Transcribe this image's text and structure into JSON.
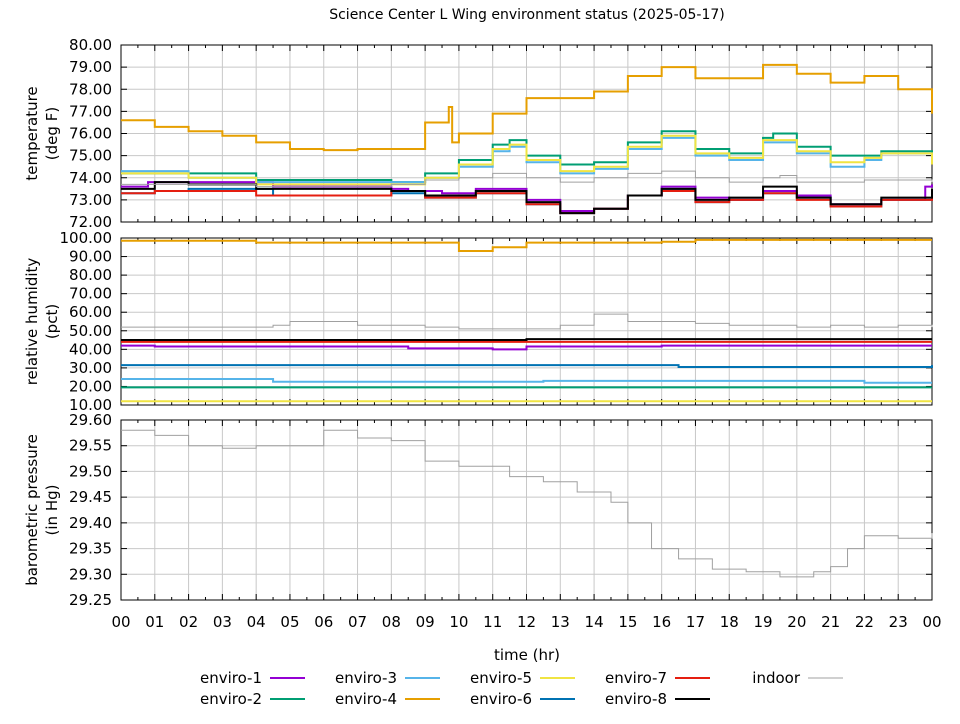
{
  "title": "Science Center L Wing environment status (2025-05-17)",
  "chart_data": [
    {
      "type": "line",
      "ylabel": [
        "temperature",
        "(deg F)"
      ],
      "ylim": [
        72,
        80
      ],
      "ytick_step": 1,
      "grid": true,
      "series": [
        {
          "name": "enviro-1",
          "color": "#9400d3",
          "x": [
            0,
            0.8,
            1,
            4.5,
            8,
            8.5,
            9.5,
            10.5,
            12,
            13,
            14,
            15,
            16,
            17,
            18,
            19,
            20,
            21,
            22.5,
            23.8,
            24
          ],
          "y": [
            73.6,
            73.8,
            73.8,
            73.6,
            73.5,
            73.4,
            73.3,
            73.5,
            73.0,
            72.5,
            72.6,
            73.2,
            73.6,
            73.1,
            73.0,
            73.4,
            73.2,
            72.8,
            73.0,
            73.6,
            73.7
          ]
        },
        {
          "name": "enviro-2",
          "color": "#009e73",
          "x": [
            0,
            4,
            8,
            9,
            10,
            11,
            11.5,
            12,
            13,
            14,
            15,
            16,
            17,
            18,
            19,
            19.3,
            20,
            21,
            22,
            22.5,
            24
          ],
          "y": [
            74.2,
            73.9,
            73.8,
            74.2,
            74.8,
            75.5,
            75.7,
            75.0,
            74.6,
            74.7,
            75.6,
            76.1,
            75.3,
            75.1,
            75.8,
            76.0,
            75.4,
            75.0,
            75.0,
            75.2,
            74.6
          ]
        },
        {
          "name": "enviro-3",
          "color": "#56b4e9",
          "x": [
            0,
            2,
            4,
            8,
            9,
            10,
            11,
            11.5,
            12,
            13,
            14,
            15,
            16,
            17,
            18,
            19,
            20,
            21,
            22,
            22.5,
            24
          ],
          "y": [
            74.3,
            74.0,
            73.8,
            73.8,
            74.0,
            74.5,
            75.2,
            75.4,
            74.7,
            74.2,
            74.4,
            75.3,
            75.8,
            75.0,
            74.8,
            75.6,
            75.1,
            74.5,
            74.8,
            75.1,
            74.6
          ]
        },
        {
          "name": "enviro-4",
          "color": "#e69f00",
          "x": [
            0,
            1,
            2,
            3,
            4,
            5,
            6,
            7,
            8,
            9,
            9.7,
            9.8,
            10,
            11,
            12,
            13,
            14,
            15,
            16,
            17,
            18,
            19,
            20,
            21,
            22,
            23,
            24
          ],
          "y": [
            76.6,
            76.3,
            76.1,
            75.9,
            75.6,
            75.3,
            75.25,
            75.3,
            75.3,
            76.5,
            77.2,
            75.6,
            76.0,
            76.9,
            77.6,
            77.6,
            77.9,
            78.6,
            79.0,
            78.5,
            78.5,
            79.1,
            78.7,
            78.3,
            78.6,
            78.0,
            76.9
          ]
        },
        {
          "name": "enviro-5",
          "color": "#f0e442",
          "x": [
            0,
            2,
            4,
            8,
            9,
            10,
            11,
            11.5,
            12,
            13,
            14,
            15,
            16,
            17,
            18,
            19,
            20,
            21,
            22,
            22.5,
            24
          ],
          "y": [
            74.2,
            74.0,
            73.7,
            73.7,
            74.0,
            74.6,
            75.3,
            75.5,
            74.8,
            74.3,
            74.5,
            75.4,
            75.9,
            75.1,
            74.9,
            75.7,
            75.2,
            74.7,
            74.9,
            75.1,
            74.6
          ]
        },
        {
          "name": "enviro-6",
          "color": "#0072b2",
          "x": [
            0,
            1,
            2,
            4.5,
            8,
            9,
            10.5,
            12,
            13,
            14,
            15,
            16,
            17,
            18,
            19,
            20,
            21,
            22.5,
            24
          ],
          "y": [
            73.3,
            73.4,
            73.5,
            73.2,
            73.3,
            73.1,
            73.3,
            72.8,
            72.4,
            72.6,
            73.2,
            73.5,
            72.9,
            73.0,
            73.3,
            73.1,
            72.7,
            73.0,
            73.4
          ]
        },
        {
          "name": "enviro-7",
          "color": "#e51e10",
          "x": [
            0,
            1,
            4,
            8,
            9,
            10.5,
            12,
            13,
            14,
            15,
            16,
            17,
            18,
            19,
            20,
            21,
            22.5,
            24
          ],
          "y": [
            73.3,
            73.4,
            73.2,
            73.4,
            73.1,
            73.3,
            72.8,
            72.4,
            72.6,
            73.2,
            73.4,
            72.9,
            73.0,
            73.3,
            73.0,
            72.7,
            73.0,
            73.4
          ]
        },
        {
          "name": "enviro-8",
          "color": "#000000",
          "x": [
            0,
            1,
            2,
            4,
            8,
            9,
            10.5,
            12,
            13,
            14,
            15,
            16,
            17,
            18,
            19,
            20,
            21,
            22.5,
            24
          ],
          "y": [
            73.5,
            73.8,
            73.7,
            73.5,
            73.4,
            73.2,
            73.4,
            72.9,
            72.4,
            72.6,
            73.2,
            73.5,
            73.0,
            73.1,
            73.6,
            73.1,
            72.8,
            73.1,
            73.5
          ]
        },
        {
          "name": "indoor",
          "color": "#a0a0a0",
          "x": [
            0,
            4,
            8,
            9,
            10,
            11,
            12,
            13,
            14,
            15,
            16,
            17,
            18,
            19,
            19.5,
            20,
            21,
            22,
            23,
            24
          ],
          "y": [
            73.7,
            73.6,
            73.7,
            73.9,
            74.0,
            74.2,
            74.0,
            73.8,
            74.0,
            74.2,
            74.3,
            74.0,
            73.8,
            74.0,
            74.1,
            73.8,
            73.8,
            73.9,
            73.9,
            73.8
          ]
        }
      ]
    },
    {
      "type": "line",
      "ylabel": [
        "relative humidity",
        "(pct)"
      ],
      "ylim": [
        10,
        100
      ],
      "ytick_step": 10,
      "grid": true,
      "series": [
        {
          "name": "enviro-1",
          "color": "#9400d3",
          "x": [
            0,
            1,
            8.5,
            11,
            12,
            16,
            24
          ],
          "y": [
            42,
            41.5,
            40.5,
            40,
            41.5,
            42,
            42
          ]
        },
        {
          "name": "enviro-2",
          "color": "#009e73",
          "x": [
            0,
            24
          ],
          "y": [
            19.5,
            19.5
          ]
        },
        {
          "name": "enviro-3",
          "color": "#56b4e9",
          "x": [
            0,
            4.5,
            12.5,
            22,
            24
          ],
          "y": [
            24,
            22.5,
            23,
            22,
            22
          ]
        },
        {
          "name": "enviro-4",
          "color": "#e69f00",
          "x": [
            0,
            4,
            9.5,
            10,
            11,
            12,
            16,
            17,
            24
          ],
          "y": [
            98.5,
            97.5,
            97.5,
            93,
            95,
            97.5,
            98,
            99,
            99
          ]
        },
        {
          "name": "enviro-5",
          "color": "#f0e442",
          "x": [
            0,
            24
          ],
          "y": [
            12,
            12
          ]
        },
        {
          "name": "enviro-6",
          "color": "#0072b2",
          "x": [
            0,
            16,
            16.5,
            24
          ],
          "y": [
            31.5,
            31.5,
            30.5,
            31.5
          ]
        },
        {
          "name": "enviro-7",
          "color": "#e51e10",
          "x": [
            0,
            24
          ],
          "y": [
            44,
            44
          ]
        },
        {
          "name": "enviro-8",
          "color": "#000000",
          "x": [
            0,
            12,
            24
          ],
          "y": [
            45,
            45.5,
            45.5
          ]
        },
        {
          "name": "indoor",
          "color": "#a0a0a0",
          "x": [
            0,
            3.5,
            4.5,
            5,
            6,
            7,
            8,
            9,
            10,
            12,
            13,
            14,
            15,
            16,
            17,
            18,
            19,
            20,
            21,
            22,
            23,
            24
          ],
          "y": [
            52,
            52,
            53,
            55,
            55,
            53,
            53,
            52,
            51,
            51,
            53,
            59,
            55,
            55,
            54,
            53,
            53,
            52,
            53,
            52,
            53,
            52
          ]
        }
      ]
    },
    {
      "type": "line",
      "ylabel": [
        "barometric pressure",
        "(in Hg)"
      ],
      "ylim": [
        29.25,
        29.6
      ],
      "ytick_step": 0.05,
      "grid": true,
      "xlabel": "time (hr)",
      "xticks": [
        "00",
        "01",
        "02",
        "03",
        "04",
        "05",
        "06",
        "07",
        "08",
        "09",
        "10",
        "11",
        "12",
        "13",
        "14",
        "15",
        "16",
        "17",
        "18",
        "19",
        "20",
        "21",
        "22",
        "23",
        "00"
      ],
      "series": [
        {
          "name": "indoor",
          "color": "#a0a0a0",
          "x": [
            0,
            1,
            2,
            3,
            4,
            5,
            6,
            7,
            8,
            9,
            10,
            11.5,
            12.5,
            13.5,
            14.5,
            15,
            15.7,
            16.5,
            17.5,
            18.5,
            19.5,
            20.5,
            21,
            21.5,
            22,
            23,
            24
          ],
          "y": [
            29.58,
            29.57,
            29.55,
            29.545,
            29.55,
            29.55,
            29.58,
            29.565,
            29.56,
            29.52,
            29.51,
            29.49,
            29.48,
            29.46,
            29.44,
            29.4,
            29.35,
            29.33,
            29.31,
            29.305,
            29.295,
            29.305,
            29.315,
            29.35,
            29.375,
            29.37,
            29.38
          ]
        }
      ]
    }
  ],
  "legend": [
    "enviro-1",
    "enviro-3",
    "enviro-5",
    "enviro-7",
    "indoor",
    "enviro-2",
    "enviro-4",
    "enviro-6",
    "enviro-8"
  ]
}
